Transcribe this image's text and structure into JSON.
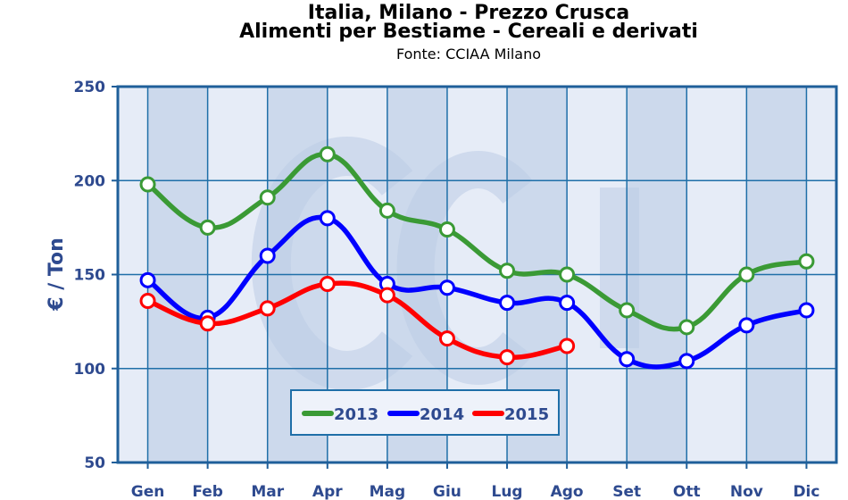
{
  "chart_data": {
    "type": "line",
    "title": "Italia, Milano - Prezzo Crusca",
    "subtitle": "Alimenti per Bestiame - Cereali e derivati",
    "source": "Fonte: CCIAA Milano",
    "ylabel": "€ / Ton",
    "xlabel": "",
    "ylim": [
      50,
      250
    ],
    "yticks": [
      50,
      100,
      150,
      200,
      250
    ],
    "grid": true,
    "legend_position": "bottom-center",
    "categories": [
      "Gen",
      "Feb",
      "Mar",
      "Apr",
      "Mag",
      "Giu",
      "Lug",
      "Ago",
      "Set",
      "Ott",
      "Nov",
      "Dic"
    ],
    "series": [
      {
        "name": "2013",
        "color": "#3a9a35",
        "values": [
          198,
          175,
          191,
          214,
          184,
          174,
          152,
          150,
          131,
          122,
          150,
          157
        ]
      },
      {
        "name": "2014",
        "color": "#0000ff",
        "values": [
          147,
          127,
          160,
          180,
          145,
          143,
          135,
          135,
          105,
          104,
          123,
          131
        ]
      },
      {
        "name": "2015",
        "color": "#ff0000",
        "values": [
          136,
          124,
          132,
          145,
          139,
          116,
          106,
          112,
          null,
          null,
          null,
          null
        ]
      }
    ]
  }
}
